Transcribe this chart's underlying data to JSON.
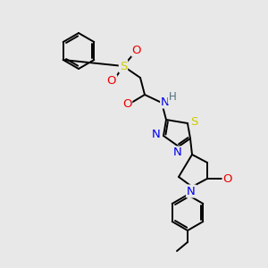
{
  "background_color": "#e8e8e8",
  "bond_color": "#000000",
  "atom_colors": {
    "N": "#0000ee",
    "O": "#ee0000",
    "S": "#cccc00",
    "H": "#507080",
    "C": "#000000"
  },
  "figsize": [
    3.0,
    3.0
  ],
  "dpi": 100,
  "lw": 1.4,
  "fontsize": 8.5
}
